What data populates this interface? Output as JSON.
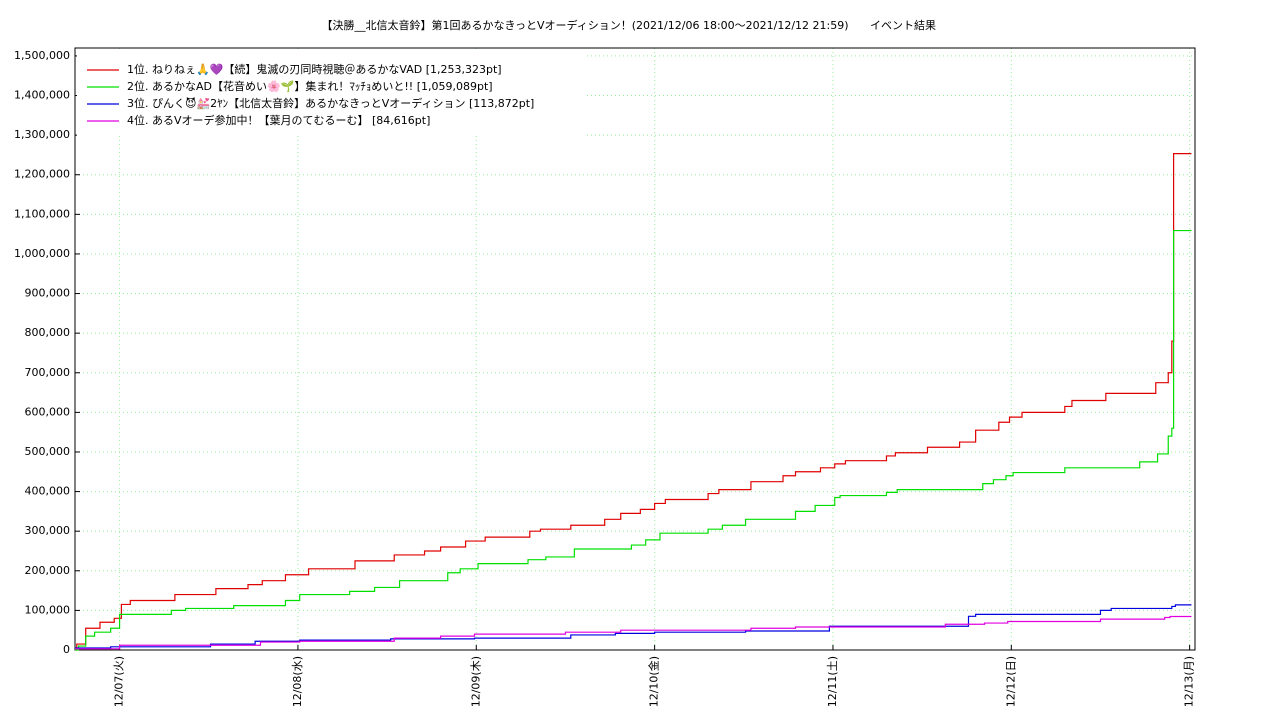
{
  "chart_data": {
    "type": "step-line",
    "title": "【決勝__北信太音鈴】第1回あるかなきっとVオーディション！(2021/12/06 18:00〜2021/12/12 21:59)",
    "subtitle": "イベント結果",
    "xlim": [
      6.75,
      13.03
    ],
    "xticks": [
      {
        "value": 7,
        "label": "12/07(火)"
      },
      {
        "value": 8,
        "label": "12/08(水)"
      },
      {
        "value": 9,
        "label": "12/09(木)"
      },
      {
        "value": 10,
        "label": "12/10(金)"
      },
      {
        "value": 11,
        "label": "12/11(土)"
      },
      {
        "value": 12,
        "label": "12/12(日)"
      },
      {
        "value": 13,
        "label": "12/13(月)"
      }
    ],
    "ylim": [
      0,
      1520000
    ],
    "yticks": [
      0,
      {
        "value": 100000,
        "label": "100,000"
      },
      {
        "value": 200000,
        "label": "200,000"
      },
      {
        "value": 300000,
        "label": "300,000"
      },
      {
        "value": 400000,
        "label": "400,000"
      },
      {
        "value": 500000,
        "label": "500,000"
      },
      {
        "value": 600000,
        "label": "600,000"
      },
      {
        "value": 700000,
        "label": "700,000"
      },
      {
        "value": 800000,
        "label": "800,000"
      },
      {
        "value": 900000,
        "label": "900,000"
      },
      {
        "value": 1000000,
        "label": "1,000,000"
      },
      {
        "value": 1100000,
        "label": "1,100,000"
      },
      {
        "value": 1200000,
        "label": "1,200,000"
      },
      {
        "value": 1300000,
        "label": "1,300,000"
      },
      {
        "value": 1400000,
        "label": "1,400,000"
      },
      {
        "value": 1500000,
        "label": "1,500,000"
      }
    ],
    "grid": true,
    "legend_position": "upper-left",
    "series": [
      {
        "name": "1位. ねりねぇ🙏💜【続】鬼滅の刃同時視聴＠あるかなVAD [1,253,323pt]",
        "color": "#e00000",
        "x": [
          6.75,
          6.76,
          6.81,
          6.89,
          6.97,
          7.01,
          7.06,
          7.31,
          7.54,
          7.72,
          7.8,
          7.93,
          8.06,
          8.32,
          8.54,
          8.71,
          8.8,
          8.94,
          9.05,
          9.3,
          9.36,
          9.53,
          9.72,
          9.81,
          9.92,
          10.0,
          10.06,
          10.3,
          10.36,
          10.54,
          10.72,
          10.79,
          10.93,
          11.01,
          11.07,
          11.3,
          11.35,
          11.53,
          11.71,
          11.8,
          11.93,
          11.99,
          12.06,
          12.3,
          12.34,
          12.53,
          12.81,
          12.88,
          12.9,
          12.91,
          13.01
        ],
        "values": [
          0,
          15000,
          55000,
          70000,
          80000,
          115000,
          125000,
          140000,
          155000,
          165000,
          175000,
          190000,
          205000,
          225000,
          240000,
          250000,
          260000,
          275000,
          285000,
          300000,
          305000,
          315000,
          330000,
          345000,
          355000,
          370000,
          380000,
          395000,
          405000,
          425000,
          440000,
          450000,
          460000,
          470000,
          478000,
          490000,
          498000,
          512000,
          525000,
          555000,
          575000,
          588000,
          600000,
          615000,
          630000,
          648000,
          675000,
          700000,
          780000,
          1253323,
          1253323
        ]
      },
      {
        "name": "2位. あるかなAD【花音めい🌸🌱】集まれ！ﾏｯﾁｮめいと!! [1,059,089pt]",
        "color": "#00e000",
        "x": [
          6.75,
          6.77,
          6.81,
          6.86,
          6.95,
          7.0,
          7.29,
          7.37,
          7.64,
          7.93,
          8.01,
          8.29,
          8.43,
          8.57,
          8.84,
          8.91,
          9.01,
          9.29,
          9.39,
          9.55,
          9.87,
          9.95,
          10.03,
          10.3,
          10.38,
          10.51,
          10.79,
          10.9,
          11.01,
          11.04,
          11.3,
          11.36,
          11.84,
          11.9,
          11.97,
          12.01,
          12.3,
          12.72,
          12.82,
          12.88,
          12.9,
          12.91,
          13.01
        ],
        "values": [
          0,
          10000,
          35000,
          45000,
          55000,
          90000,
          100000,
          105000,
          112000,
          125000,
          140000,
          148000,
          158000,
          175000,
          195000,
          205000,
          218000,
          228000,
          235000,
          255000,
          265000,
          278000,
          295000,
          305000,
          315000,
          330000,
          350000,
          365000,
          385000,
          390000,
          398000,
          405000,
          420000,
          430000,
          440000,
          448000,
          460000,
          475000,
          495000,
          540000,
          560000,
          1059089,
          1059089
        ]
      },
      {
        "name": "3位. ぴんく😈💒2ﾔﾝ【北信太音鈴】あるかなきっとVオーディション [113,872pt]",
        "color": "#0000e0",
        "x": [
          6.75,
          6.95,
          7.51,
          7.76,
          8.01,
          8.52,
          8.99,
          9.53,
          9.78,
          10.0,
          10.51,
          10.98,
          11.76,
          11.8,
          12.5,
          12.56,
          12.9,
          12.92,
          13.01
        ],
        "values": [
          5000,
          8000,
          15000,
          22000,
          25000,
          28000,
          30000,
          38000,
          42000,
          45000,
          48000,
          60000,
          85000,
          90000,
          100000,
          105000,
          110000,
          113872,
          113872
        ]
      },
      {
        "name": "4位. あるVオーデ参加中！【葉月のてむるーむ】 [84,616pt]",
        "color": "#e000e0",
        "x": [
          6.75,
          7.0,
          7.79,
          8.01,
          8.54,
          8.8,
          8.99,
          9.5,
          9.81,
          10.54,
          10.79,
          11.63,
          11.85,
          11.98,
          12.5,
          12.86,
          12.89,
          13.01
        ],
        "values": [
          3000,
          12000,
          20000,
          22000,
          30000,
          35000,
          40000,
          45000,
          50000,
          55000,
          58000,
          65000,
          68000,
          72000,
          78000,
          82000,
          84616,
          84616
        ]
      }
    ]
  }
}
